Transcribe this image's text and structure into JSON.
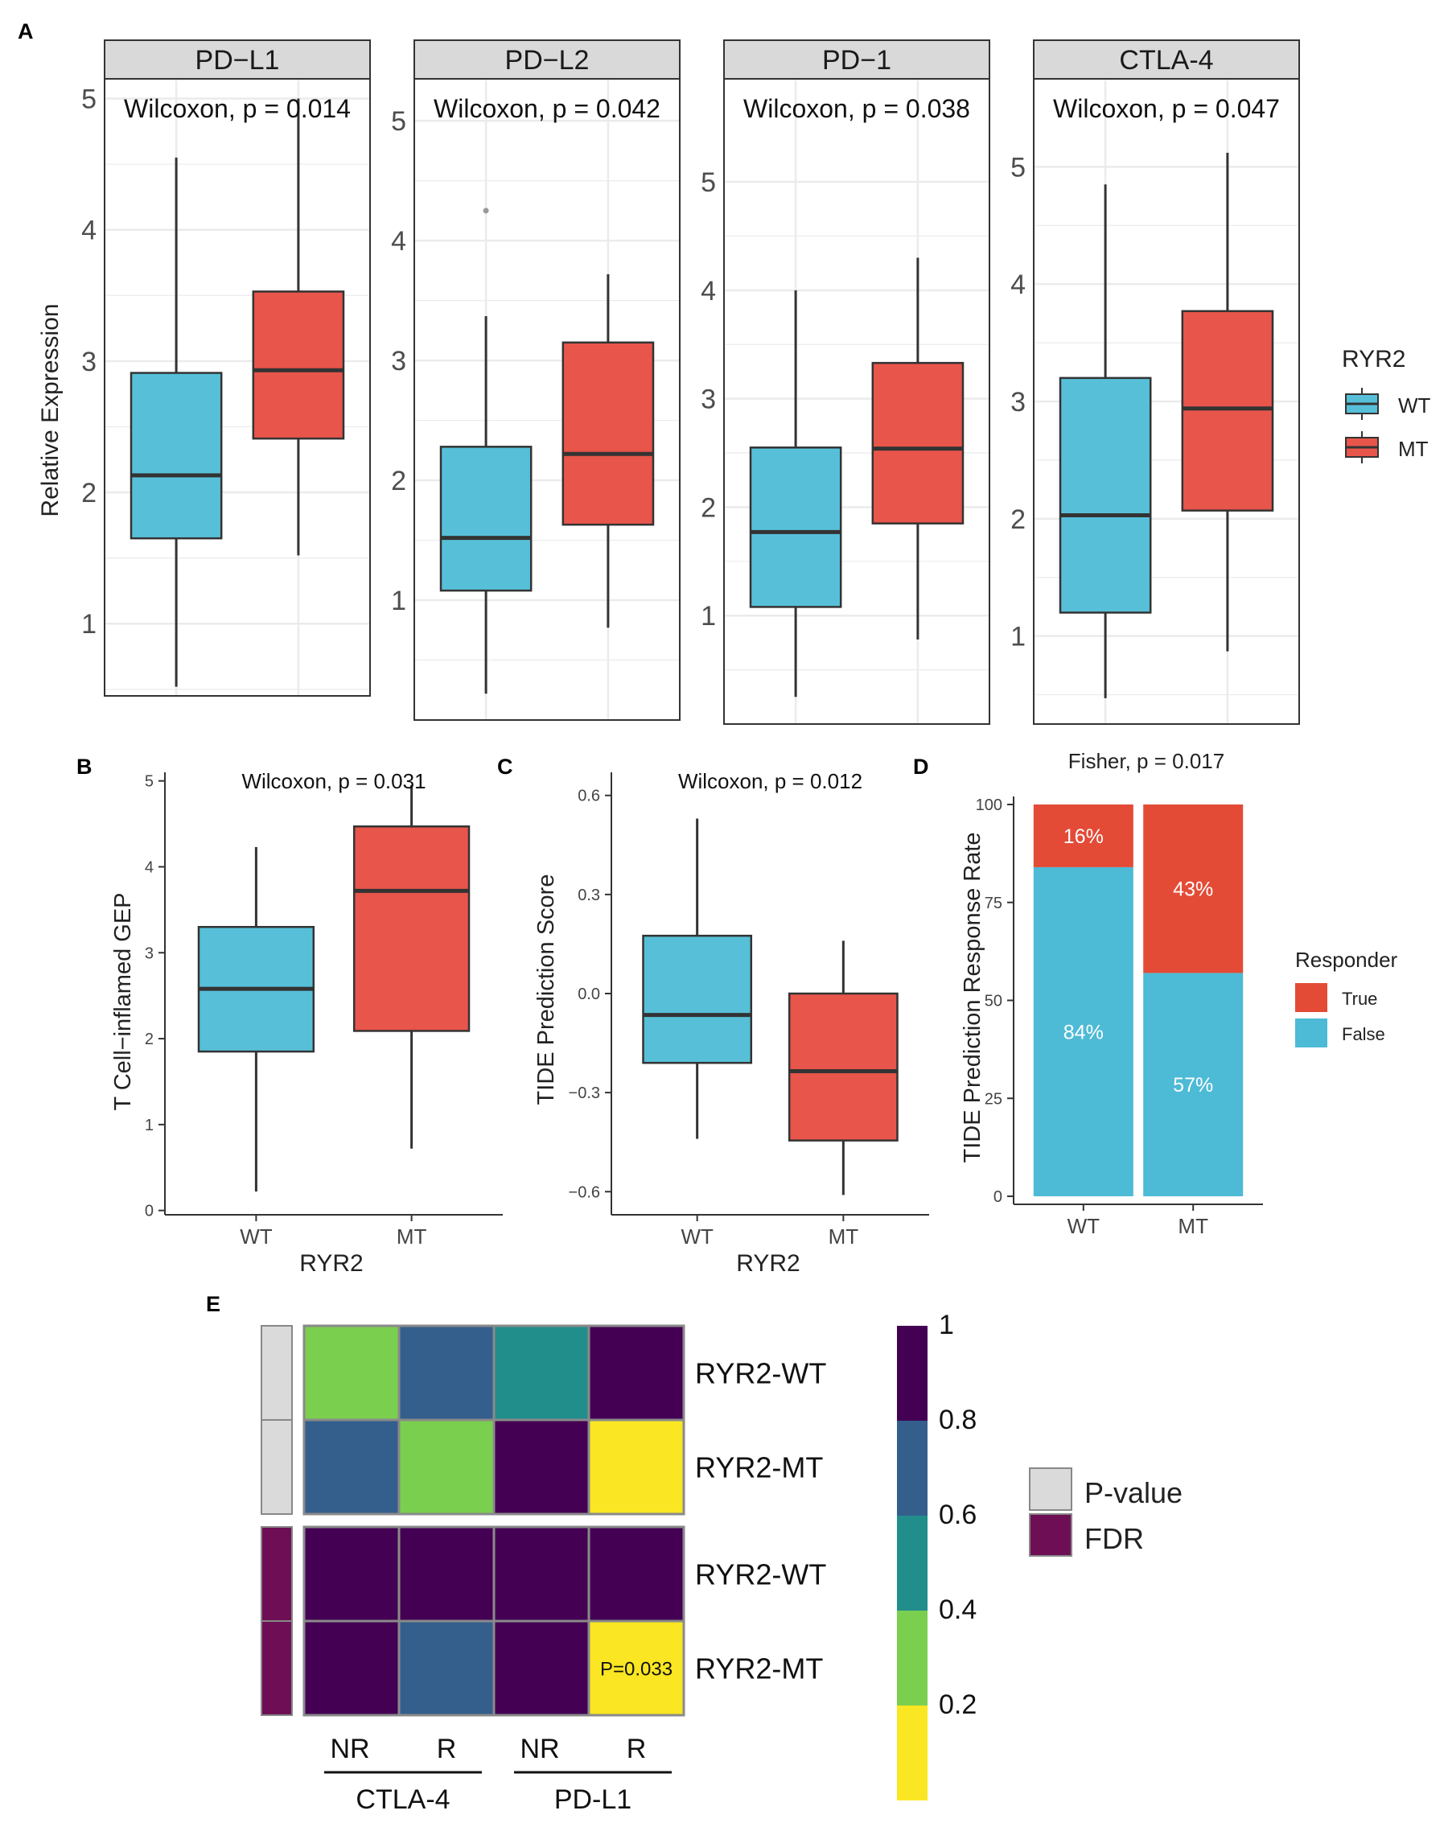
{
  "colors": {
    "wt": "#57C0D8",
    "mt": "#E8554A",
    "false_bar": "#4DBAD6",
    "true_bar": "#E34B36",
    "grid": "#EBEBEB",
    "strip": "#D9D9D9",
    "pvalue_anno": "#DADADA",
    "fdr_anno": "#6E0F56",
    "scale": [
      "#FAE622",
      "#7ACF4F",
      "#218E8C",
      "#345F8C",
      "#440154"
    ]
  },
  "chart_data": [
    {
      "id": "A1",
      "panel_label": "A",
      "type": "box",
      "facet_title": "PD−L1",
      "title": "Wilcoxon, p = 0.014",
      "ylabel": "Relative Expression",
      "xlabel": "",
      "categories": [
        "WT",
        "MT"
      ],
      "show_x_ticks": false,
      "ylim": [
        0.45,
        5.15
      ],
      "yticks": [
        1,
        2,
        3,
        4,
        5
      ],
      "tick_labels": [
        "1",
        "2",
        "3",
        "4",
        "5"
      ],
      "boxes": [
        {
          "group": "WT",
          "min": 0.52,
          "q1": 1.65,
          "median": 2.13,
          "q3": 2.91,
          "max": 4.55,
          "outliers": []
        },
        {
          "group": "MT",
          "min": 1.52,
          "q1": 2.41,
          "median": 2.93,
          "q3": 3.53,
          "max": 5.0,
          "outliers": []
        }
      ]
    },
    {
      "id": "A2",
      "type": "box",
      "facet_title": "PD−L2",
      "title": "Wilcoxon, p = 0.042",
      "categories": [
        "WT",
        "MT"
      ],
      "show_x_ticks": false,
      "ylim": [
        0.0,
        5.35
      ],
      "yticks": [
        1,
        2,
        3,
        4,
        5
      ],
      "tick_labels": [
        "1",
        "2",
        "3",
        "4",
        "5"
      ],
      "boxes": [
        {
          "group": "WT",
          "min": 0.22,
          "q1": 1.08,
          "median": 1.52,
          "q3": 2.28,
          "max": 3.37,
          "outliers": [
            4.25
          ]
        },
        {
          "group": "MT",
          "min": 0.77,
          "q1": 1.63,
          "median": 2.22,
          "q3": 3.15,
          "max": 3.72,
          "outliers": []
        }
      ]
    },
    {
      "id": "A3",
      "type": "box",
      "facet_title": "PD−1",
      "title": "Wilcoxon, p = 0.038",
      "categories": [
        "WT",
        "MT"
      ],
      "show_x_ticks": false,
      "ylim": [
        0.0,
        5.95
      ],
      "yticks": [
        1,
        2,
        3,
        4,
        5
      ],
      "tick_labels": [
        "1",
        "2",
        "3",
        "4",
        "5"
      ],
      "boxes": [
        {
          "group": "WT",
          "min": 0.25,
          "q1": 1.08,
          "median": 1.77,
          "q3": 2.55,
          "max": 4.0,
          "outliers": []
        },
        {
          "group": "MT",
          "min": 0.78,
          "q1": 1.85,
          "median": 2.54,
          "q3": 3.33,
          "max": 4.3,
          "outliers": []
        }
      ]
    },
    {
      "id": "A4",
      "type": "box",
      "facet_title": "CTLA-4",
      "title": "Wilcoxon, p = 0.047",
      "categories": [
        "WT",
        "MT"
      ],
      "show_x_ticks": false,
      "ylim": [
        0.25,
        5.75
      ],
      "yticks": [
        1,
        2,
        3,
        4,
        5
      ],
      "tick_labels": [
        "1",
        "2",
        "3",
        "4",
        "5"
      ],
      "boxes": [
        {
          "group": "WT",
          "min": 0.47,
          "q1": 1.2,
          "median": 2.03,
          "q3": 3.2,
          "max": 4.85,
          "outliers": []
        },
        {
          "group": "MT",
          "min": 0.87,
          "q1": 2.07,
          "median": 2.94,
          "q3": 3.77,
          "max": 5.12,
          "outliers": []
        }
      ]
    },
    {
      "id": "B",
      "panel_label": "B",
      "type": "box",
      "title": "Wilcoxon, p = 0.031",
      "ylabel": "T Cell−inflamed GEP",
      "xlabel": "RYR2",
      "categories": [
        "WT",
        "MT"
      ],
      "show_x_ticks": true,
      "ylim": [
        -0.05,
        5.1
      ],
      "yticks": [
        0,
        1,
        2,
        3,
        4,
        5
      ],
      "tick_labels": [
        "0",
        "1",
        "2",
        "3",
        "4",
        "5"
      ],
      "boxes": [
        {
          "group": "WT",
          "min": 0.22,
          "q1": 1.85,
          "median": 2.58,
          "q3": 3.3,
          "max": 4.23,
          "outliers": []
        },
        {
          "group": "MT",
          "min": 0.72,
          "q1": 2.09,
          "median": 3.72,
          "q3": 4.47,
          "max": 4.95,
          "outliers": []
        }
      ]
    },
    {
      "id": "C",
      "panel_label": "C",
      "type": "box",
      "title": "Wilcoxon, p = 0.012",
      "ylabel": "TIDE Prediction Score",
      "xlabel": "RYR2",
      "categories": [
        "WT",
        "MT"
      ],
      "show_x_ticks": true,
      "ylim": [
        -0.67,
        0.67
      ],
      "yticks": [
        -0.6,
        -0.3,
        0.0,
        0.3,
        0.6
      ],
      "tick_labels": [
        "−0.6",
        "−0.3",
        "0.0",
        "0.3",
        "0.6"
      ],
      "boxes": [
        {
          "group": "WT",
          "min": -0.44,
          "q1": -0.21,
          "median": -0.065,
          "q3": 0.175,
          "max": 0.53,
          "outliers": []
        },
        {
          "group": "MT",
          "min": -0.61,
          "q1": -0.445,
          "median": -0.235,
          "q3": 0.0,
          "max": 0.16,
          "outliers": []
        }
      ]
    },
    {
      "id": "D",
      "panel_label": "D",
      "type": "bar",
      "stacked": true,
      "title": "Fisher, p = 0.017",
      "ylabel": "TIDE Prediction Response Rate",
      "categories": [
        "WT",
        "MT"
      ],
      "ylim": [
        0,
        100
      ],
      "yticks": [
        0,
        25,
        50,
        75,
        100
      ],
      "tick_labels": [
        "0",
        "25",
        "50",
        "75",
        "100"
      ],
      "series": [
        {
          "name": "False",
          "values": [
            84,
            57
          ],
          "labels": [
            "84%",
            "57%"
          ]
        },
        {
          "name": "True",
          "values": [
            16,
            43
          ],
          "labels": [
            "16%",
            "43%"
          ]
        }
      ],
      "legend": {
        "title": "Responder",
        "entries": [
          "True",
          "False"
        ],
        "position": "right"
      }
    },
    {
      "id": "E",
      "panel_label": "E",
      "type": "heatmap",
      "rows": [
        "RYR2-WT",
        "RYR2-MT",
        "RYR2-WT",
        "RYR2-MT"
      ],
      "row_groups": [
        "P-value",
        "P-value",
        "FDR",
        "FDR"
      ],
      "columns": [
        "NR",
        "R",
        "NR",
        "R"
      ],
      "column_groups": [
        "CTLA-4",
        "CTLA-4",
        "PD-L1",
        "PD-L1"
      ],
      "values": [
        [
          0.35,
          0.7,
          0.5,
          0.95
        ],
        [
          0.7,
          0.3,
          0.95,
          0.1
        ],
        [
          0.95,
          0.95,
          0.95,
          0.95
        ],
        [
          0.95,
          0.7,
          0.95,
          0.1
        ]
      ],
      "annotation": "P=0.033",
      "scale_ticks": [
        "1",
        "0.8",
        "0.6",
        "0.4",
        "0.2"
      ],
      "legend_entries": [
        "P-value",
        "FDR"
      ]
    }
  ],
  "legend_A": {
    "title": "RYR2",
    "entries": [
      "WT",
      "MT"
    ]
  }
}
